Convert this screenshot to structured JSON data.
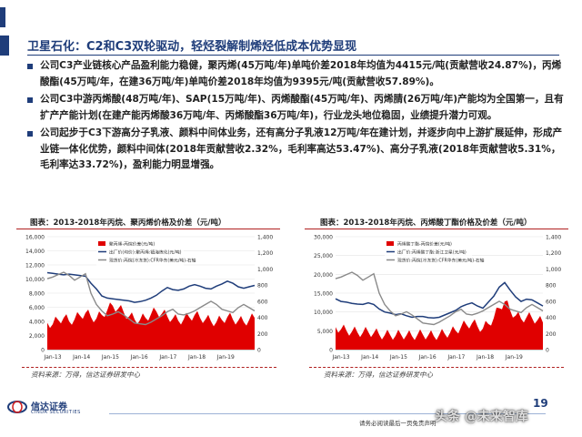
{
  "page": {
    "title": "卫星石化：C2和C3双轮驱动，轻烃裂解制烯烃低成本优势显现",
    "bullets": [
      "公司C3产业链核心产品盈利能力稳健，聚丙烯(45万吨/年)单吨价差2018年均值为4415元/吨(贡献营收24.87%)，丙烯酸酯(45万吨/年，在建36万吨/年)单吨价差2018年均值为9395元/吨(贡献营收57.89%)。",
      "公司C3中游丙烯酸(48万吨/年)、SAP(15万吨/年)、丙烯酸酯(45万吨/年)、丙烯腈(26万吨/年)产能均为全国第一，且有扩产产能计划(在建产能丙烯酸36万吨/年、丙烯酸酯36万吨/年)，行业龙头地位稳固，业绩提升潜力可观。",
      "公司起步于C3下游高分子乳液、颜料中间体业务，还有高分子乳液12万吨/年在建计划，并逐步向中上游扩展延伸，形成产业链一体化优势，颜料中间体(2018年贡献营收2.32%，毛利率高达53.47%)、高分子乳液(2018年贡献营收5.31%，毛利率达33.72%)，盈利能力明显增强。"
    ],
    "source_left": "资料来源：万得，信达证券研发中心",
    "source_right": "资料来源：万得，信达证券研发中心",
    "logo_text": "信达证券",
    "logo_sub": "CINDA SECURITIES",
    "page_number": "19",
    "disclaimer": "请务必阅读最后一页免责声明",
    "watermark": "头条 @未来智库",
    "colors": {
      "brand": "#1f3d7a",
      "red": "#e00000",
      "navy": "#1f3d7a",
      "gray": "#8a8a8a"
    }
  },
  "chart_data": [
    {
      "type": "area",
      "caption": "图表：2013-2018年丙烷、聚丙烯价格及价差（元/吨）",
      "x_ticks": [
        "Jan-13",
        "Jan-14",
        "Jan-15",
        "Jan-16",
        "Jan-17",
        "Jan-18",
        "Jan-19"
      ],
      "y_left_ticks": [
        "0",
        "2,000",
        "4,000",
        "6,000",
        "8,000",
        "10,000",
        "12,000",
        "14,000",
        "16,000"
      ],
      "y_right_ticks": [
        "0",
        "200",
        "400",
        "600",
        "800",
        "1,000",
        "1,200",
        "1,400"
      ],
      "ylim_left": [
        0,
        16000
      ],
      "ylim_right": [
        0,
        1400
      ],
      "legend": [
        "聚丙烯-丙烷价差(元/吨)",
        "出厂价(均价):聚丙烯:镇海炼化(元/吨)",
        "现货价:丙烷(冷冻货):CFR华东(美元/吨)-右轴"
      ],
      "series": [
        {
          "name": "聚丙烯-丙烷价差(元/吨)",
          "kind": "area",
          "axis": "left",
          "values": [
            3800,
            3600,
            4200,
            4500,
            4000,
            4300,
            4800,
            5200,
            4600,
            4400,
            4900,
            5600,
            6200,
            5800,
            5300,
            4700,
            4300,
            4200,
            4500,
            5000,
            5400,
            5100,
            4700,
            4400,
            4100,
            4300,
            4600,
            4900,
            4500,
            4300,
            4000,
            3900,
            4200,
            4600,
            4300,
            4100,
            3900,
            4200,
            4500
          ]
        },
        {
          "name": "出厂价(均价):聚丙烯:镇海炼化(元/吨)",
          "kind": "line",
          "axis": "left",
          "values": [
            10900,
            10800,
            10700,
            10600,
            10700,
            10600,
            10500,
            10400,
            9400,
            8600,
            7600,
            7300,
            7200,
            7100,
            7000,
            6900,
            6700,
            6800,
            7000,
            7300,
            7700,
            8300,
            8800,
            8500,
            8400,
            8600,
            9000,
            9200,
            9000,
            8700,
            8600,
            9000,
            9300,
            9700,
            9400,
            8900,
            8700,
            8900,
            9100
          ]
        },
        {
          "name": "现货价:丙烷(冷冻货):CFR华东(美元/吨)-右轴",
          "kind": "line",
          "axis": "right",
          "values": [
            880,
            900,
            930,
            960,
            920,
            860,
            900,
            940,
            700,
            560,
            480,
            420,
            440,
            470,
            430,
            380,
            330,
            320,
            310,
            340,
            380,
            420,
            470,
            500,
            440,
            430,
            450,
            480,
            520,
            560,
            600,
            560,
            500,
            480,
            460,
            520,
            560,
            520,
            480
          ]
        }
      ]
    },
    {
      "type": "area",
      "caption": "图表：2013-2018年丙烷、丙烯酸丁酯价格及价差（元/吨）",
      "x_ticks": [
        "Jan-13",
        "Jan-14",
        "Jan-15",
        "Jan-16",
        "Jan-17",
        "Jan-18",
        "Jan-19"
      ],
      "y_left_ticks": [
        "0",
        "5,000",
        "10,000",
        "15,000",
        "20,000",
        "25,000",
        "30,000"
      ],
      "y_right_ticks": [
        "0",
        "200",
        "400",
        "600",
        "800",
        "1,000",
        "1,200",
        "1,400"
      ],
      "ylim_left": [
        0,
        30000
      ],
      "ylim_right": [
        0,
        1400
      ],
      "legend": [
        "丙烯酸丁酯-丙烷价差(元/吨)",
        "出厂价:丙烯酸丁酯:浙江卫星(元/吨)",
        "现货价:丙烷(冷冻货):CFR华东(美元/吨)-右轴"
      ],
      "series": [
        {
          "name": "丙烯酸丁酯-丙烷价差(元/吨)",
          "kind": "area",
          "axis": "left",
          "values": [
            6000,
            5400,
            5000,
            4800,
            4600,
            4500,
            4700,
            4400,
            4000,
            3800,
            3900,
            3700,
            4000,
            3800,
            3600,
            3900,
            4000,
            3800,
            3600,
            3900,
            4200,
            4500,
            5000,
            6000,
            6600,
            7000,
            6200,
            5600,
            6800,
            8400,
            11000,
            12800,
            10400,
            9000,
            8200,
            8600,
            8400,
            7800,
            7200
          ]
        },
        {
          "name": "出厂价:丙烯酸丁酯:浙江卫星(元/吨)",
          "kind": "line",
          "axis": "left",
          "values": [
            13500,
            12800,
            12600,
            12300,
            12100,
            12000,
            12400,
            12000,
            10800,
            10000,
            9700,
            9300,
            9500,
            9000,
            8600,
            8800,
            8800,
            8500,
            8400,
            8600,
            9200,
            9800,
            10400,
            11400,
            12000,
            12400,
            11600,
            11000,
            12600,
            14200,
            16600,
            17800,
            15800,
            14000,
            12800,
            13400,
            13200,
            12400,
            11600
          ]
        },
        {
          "name": "现货价:丙烷(冷冻货):CFR华东(美元/吨)-右轴",
          "kind": "line",
          "axis": "right",
          "values": [
            880,
            900,
            930,
            960,
            920,
            860,
            900,
            940,
            700,
            560,
            480,
            420,
            440,
            470,
            430,
            380,
            330,
            320,
            310,
            340,
            380,
            420,
            470,
            500,
            440,
            430,
            450,
            480,
            520,
            560,
            600,
            560,
            500,
            480,
            460,
            520,
            560,
            520,
            480
          ]
        }
      ]
    }
  ]
}
